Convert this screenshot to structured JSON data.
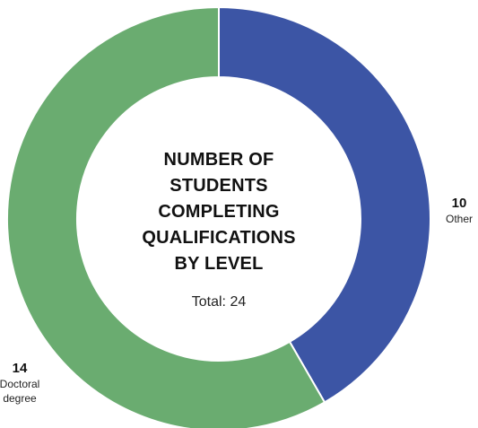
{
  "chart_data": {
    "type": "pie",
    "style": "donut",
    "title": "NUMBER OF STUDENTS COMPLETING QUALIFICATIONS BY LEVEL",
    "total_text": "Total: 24",
    "slices": [
      {
        "label": "Other",
        "value": 10,
        "color": "#3c55a5"
      },
      {
        "label": "Doctoral degree",
        "value": 14,
        "color": "#6aac70"
      }
    ]
  }
}
